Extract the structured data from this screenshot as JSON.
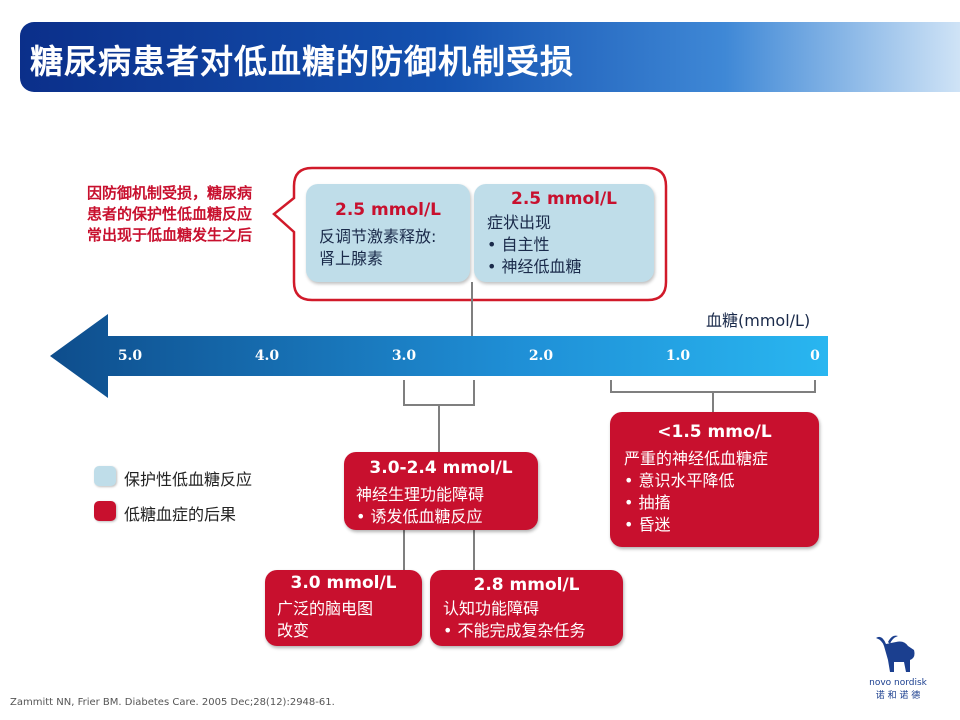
{
  "title": "糖尿病患者对低血糖的防御机制受损",
  "note": "因防御机制受损，糖尿病患者的保护性低血糖反应常出现于低血糖发生之后",
  "axis": {
    "label": "血糖(mmol/L)",
    "ticks": [
      "5.0",
      "4.0",
      "3.0",
      "2.0",
      "1.0",
      "0"
    ]
  },
  "protective": [
    {
      "header": "2.5 mmol/L",
      "lines": [
        "反调节激素释放:",
        "肾上腺素"
      ]
    },
    {
      "header": "2.5 mmol/L",
      "lines": [
        "症状出现"
      ],
      "bullets": [
        "自主性",
        "神经低血糖"
      ]
    }
  ],
  "consequences": [
    {
      "header": "3.0-2.4 mmol/L",
      "lines": [
        "神经生理功能障碍"
      ],
      "bullets": [
        "诱发低血糖反应"
      ]
    },
    {
      "header": "3.0 mmol/L",
      "lines": [
        "广泛的脑电图",
        "改变"
      ],
      "bullets": []
    },
    {
      "header": "2.8 mmol/L",
      "lines": [
        "认知功能障碍"
      ],
      "bullets": [
        "不能完成复杂任务"
      ]
    },
    {
      "header": "<1.5 mmo/L",
      "lines": [
        "严重的神经低血糖症"
      ],
      "bullets": [
        "意识水平降低",
        "抽搐",
        "昏迷"
      ]
    }
  ],
  "legend": [
    {
      "label": "保护性低血糖反应",
      "color": "#bfdde9"
    },
    {
      "label": "低糖血症的后果",
      "color": "#c8102e"
    }
  ],
  "reference": "Zammitt NN, Frier BM. Diabetes Care. 2005 Dec;28(12):2948-61.",
  "logo": {
    "name": "novo nordisk",
    "chinese": "诺 和 诺 德"
  }
}
